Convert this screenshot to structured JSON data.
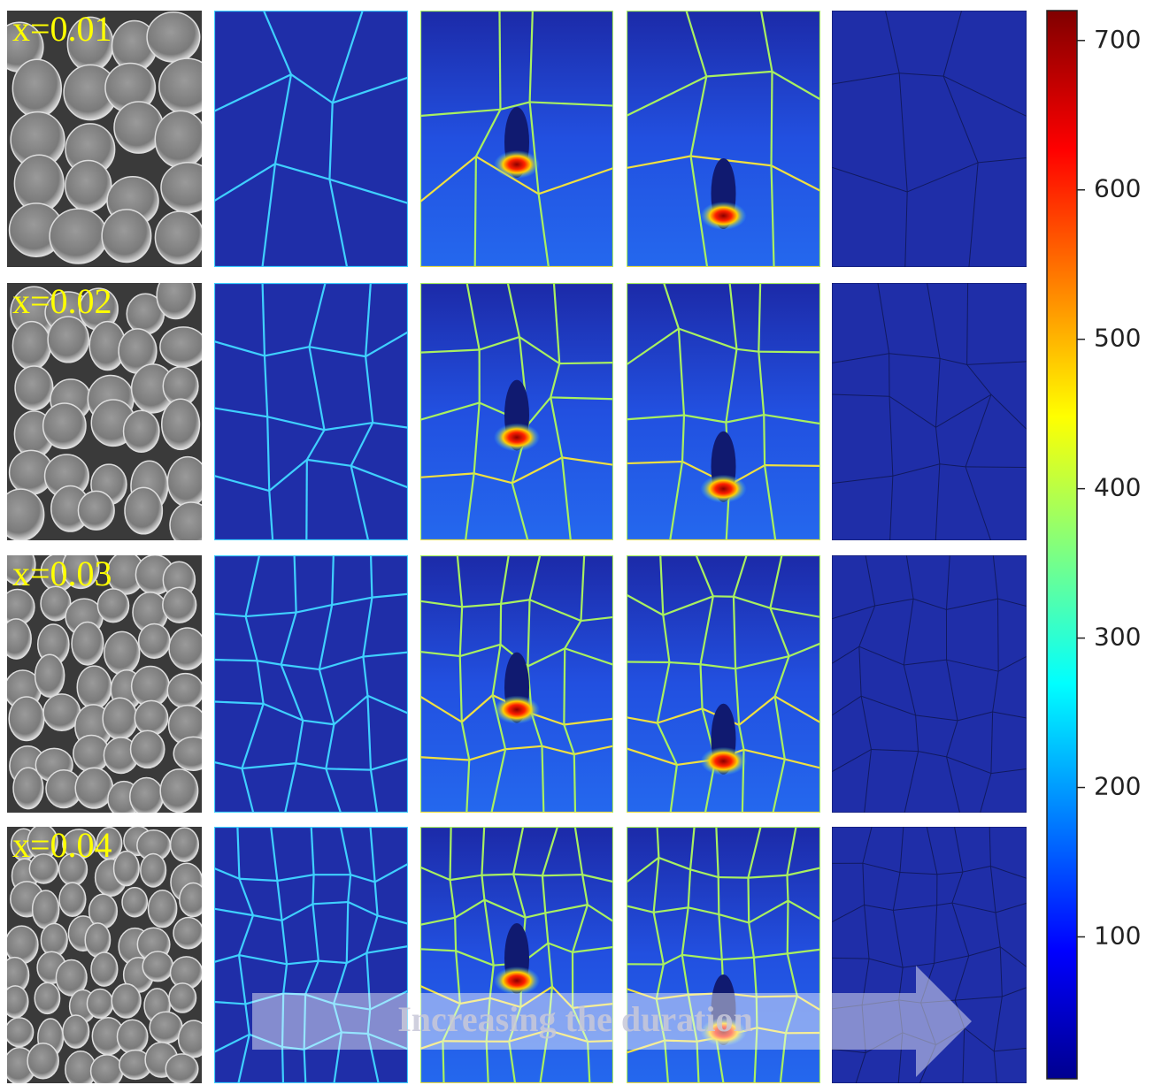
{
  "row_labels": [
    "x=0.01",
    "x=0.02",
    "x=0.03",
    "x=0.04"
  ],
  "colorbar": {
    "lim": [
      5,
      720
    ],
    "ticks": [
      100,
      200,
      300,
      400,
      500,
      600,
      700
    ]
  },
  "arrow_label": "Increasing the duration"
}
